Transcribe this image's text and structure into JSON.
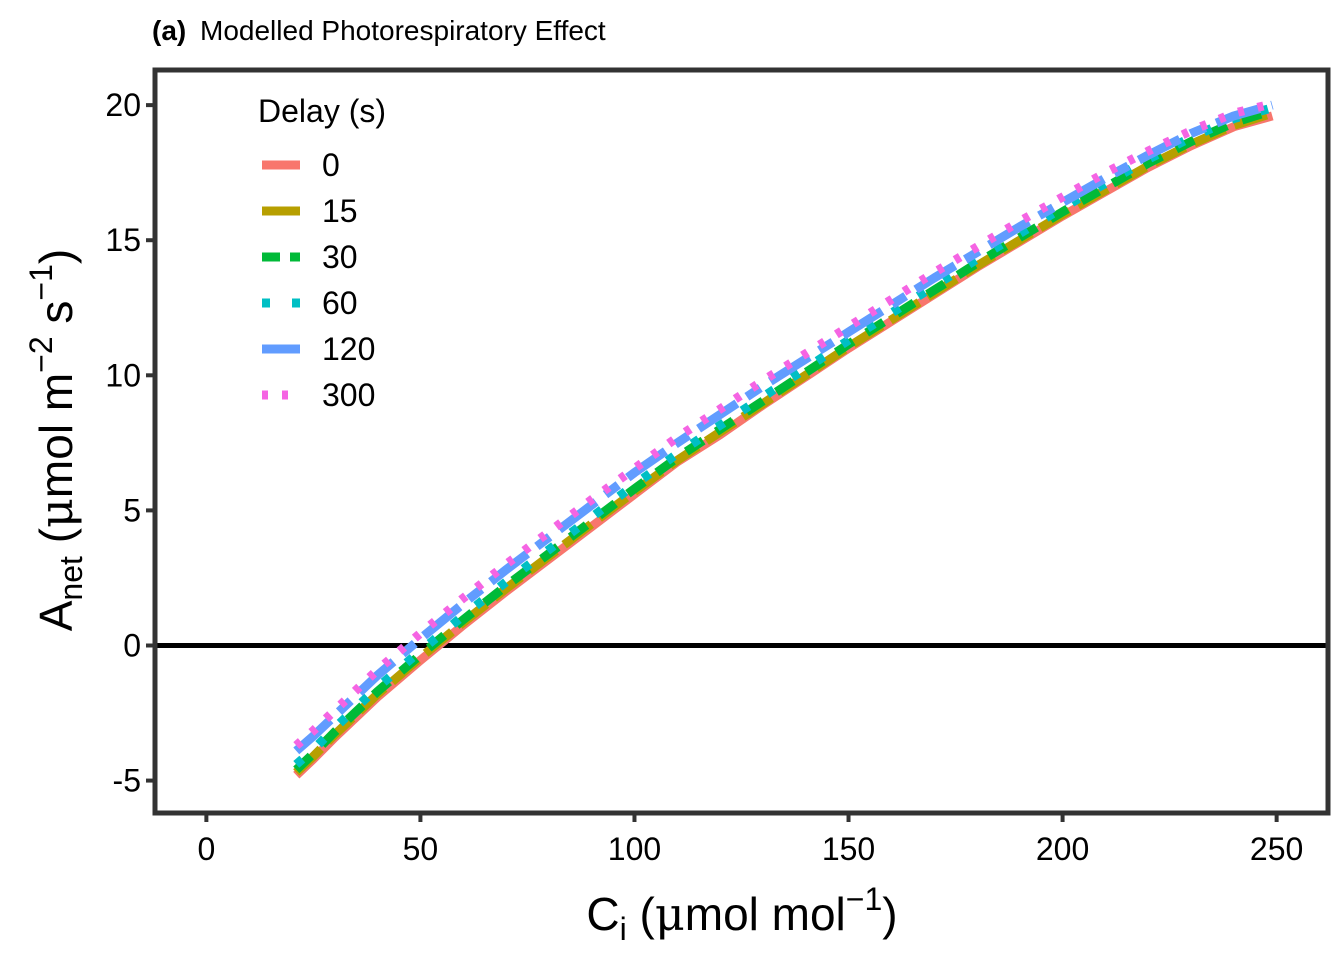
{
  "chart_data": {
    "type": "line",
    "title_tag": "(a)",
    "title": "Modelled Photorespiratory Effect",
    "xlabel": "C",
    "xlabel_sub": "i",
    "xlabel_unit_open": " (",
    "xlabel_mu": "μ",
    "xlabel_unit": "mol mol",
    "xlabel_sup": "−1",
    "xlabel_close": ")",
    "ylabel": "A",
    "ylabel_sub": "net",
    "ylabel_unit_open": " (",
    "ylabel_mu": "μ",
    "ylabel_unit": "mol m",
    "ylabel_sup1": "−2",
    "ylabel_mid": " s",
    "ylabel_sup2": "−1",
    "ylabel_close": ")",
    "xlim": [
      -12,
      262
    ],
    "ylim": [
      -6.2,
      21.3
    ],
    "x_ticks": [
      0,
      50,
      100,
      150,
      200,
      250
    ],
    "x_tick_labels": [
      "0",
      "50",
      "100",
      "150",
      "200",
      "250"
    ],
    "y_ticks": [
      -5,
      0,
      5,
      10,
      15,
      20
    ],
    "y_tick_labels": [
      "-5",
      "0",
      "5",
      "10",
      "15",
      "20"
    ],
    "hline": 0,
    "grid": false,
    "legend": {
      "title": "Delay (s)",
      "position": "top-left-inside"
    },
    "x": [
      21,
      25,
      30,
      40,
      50,
      60,
      70,
      80,
      90,
      100,
      110,
      120,
      130,
      140,
      150,
      160,
      170,
      180,
      190,
      200,
      210,
      220,
      230,
      240,
      249
    ],
    "series": [
      {
        "name": "0",
        "color": "#F8766D",
        "dash": "solid",
        "values": [
          -4.8,
          -4.2,
          -3.4,
          -1.9,
          -0.55,
          0.75,
          2.0,
          3.2,
          4.4,
          5.6,
          6.8,
          7.8,
          8.9,
          9.95,
          11.0,
          12.0,
          13.0,
          14.0,
          14.95,
          15.9,
          16.8,
          17.7,
          18.5,
          19.2,
          19.6
        ]
      },
      {
        "name": "15",
        "color": "#B79F00",
        "dash": "longdash",
        "values": [
          -4.7,
          -4.1,
          -3.3,
          -1.8,
          -0.45,
          0.85,
          2.1,
          3.3,
          4.5,
          5.7,
          6.85,
          7.9,
          8.95,
          10.0,
          11.05,
          12.05,
          13.05,
          14.05,
          15.0,
          15.95,
          16.85,
          17.75,
          18.55,
          19.25,
          19.7
        ]
      },
      {
        "name": "30",
        "color": "#00BA38",
        "dash": "dashed",
        "values": [
          -4.6,
          -4.0,
          -3.2,
          -1.7,
          -0.35,
          0.95,
          2.2,
          3.4,
          4.6,
          5.8,
          6.95,
          8.0,
          9.05,
          10.1,
          11.15,
          12.15,
          13.15,
          14.15,
          15.1,
          16.05,
          16.95,
          17.85,
          18.65,
          19.35,
          19.8
        ]
      },
      {
        "name": "60",
        "color": "#00BFC4",
        "dash": "dotted",
        "values": [
          -4.4,
          -3.85,
          -3.05,
          -1.55,
          -0.2,
          1.1,
          2.35,
          3.55,
          4.75,
          5.95,
          7.1,
          8.15,
          9.2,
          10.25,
          11.3,
          12.3,
          13.3,
          14.3,
          15.25,
          16.2,
          17.1,
          18.0,
          18.8,
          19.5,
          19.9
        ]
      },
      {
        "name": "120",
        "color": "#619CFF",
        "dash": "longdash-short",
        "values": [
          -3.9,
          -3.35,
          -2.6,
          -1.1,
          0.25,
          1.55,
          2.8,
          4.0,
          5.2,
          6.4,
          7.5,
          8.55,
          9.6,
          10.6,
          11.6,
          12.6,
          13.6,
          14.55,
          15.5,
          16.4,
          17.3,
          18.15,
          18.95,
          19.6,
          20.0
        ]
      },
      {
        "name": "300",
        "color": "#F564E3",
        "dash": "fine-dotted",
        "values": [
          -3.7,
          -3.15,
          -2.4,
          -0.9,
          0.45,
          1.75,
          3.0,
          4.2,
          5.4,
          6.55,
          7.7,
          8.75,
          9.8,
          10.8,
          11.8,
          12.8,
          13.8,
          14.75,
          15.7,
          16.6,
          17.5,
          18.3,
          19.05,
          19.7,
          20.05
        ]
      }
    ]
  }
}
